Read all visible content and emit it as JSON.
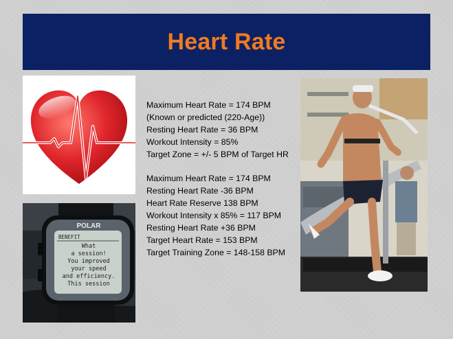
{
  "slide": {
    "title": "Heart Rate"
  },
  "watch": {
    "brand": "POLAR",
    "screen_title": "BENEFIT",
    "screen_lines": [
      "What",
      "a session!",
      "You improved",
      "your speed",
      "and efficiency.",
      "This session"
    ]
  },
  "content": {
    "group1": [
      "Maximum Heart Rate = 174  BPM",
      "(Known or predicted (220-Age))",
      "Resting Heart Rate = 36 BPM",
      "Workout Intensity = 85%",
      "Target Zone = +/- 5 BPM of Target HR"
    ],
    "group2": [
      "Maximum Heart Rate = 174 BPM",
      "Resting Heart Rate -36 BPM",
      "Heart Rate Reserve 138 BPM",
      "Workout Intensity x 85% = 117 BPM",
      "Resting Heart Rate +36 BPM",
      "Target Heart Rate = 153 BPM",
      "Target Training Zone = 148-158 BPM"
    ]
  },
  "colors": {
    "title_bar": "#0c2163",
    "title_text": "#f07a21",
    "heart": "#e0262b"
  }
}
